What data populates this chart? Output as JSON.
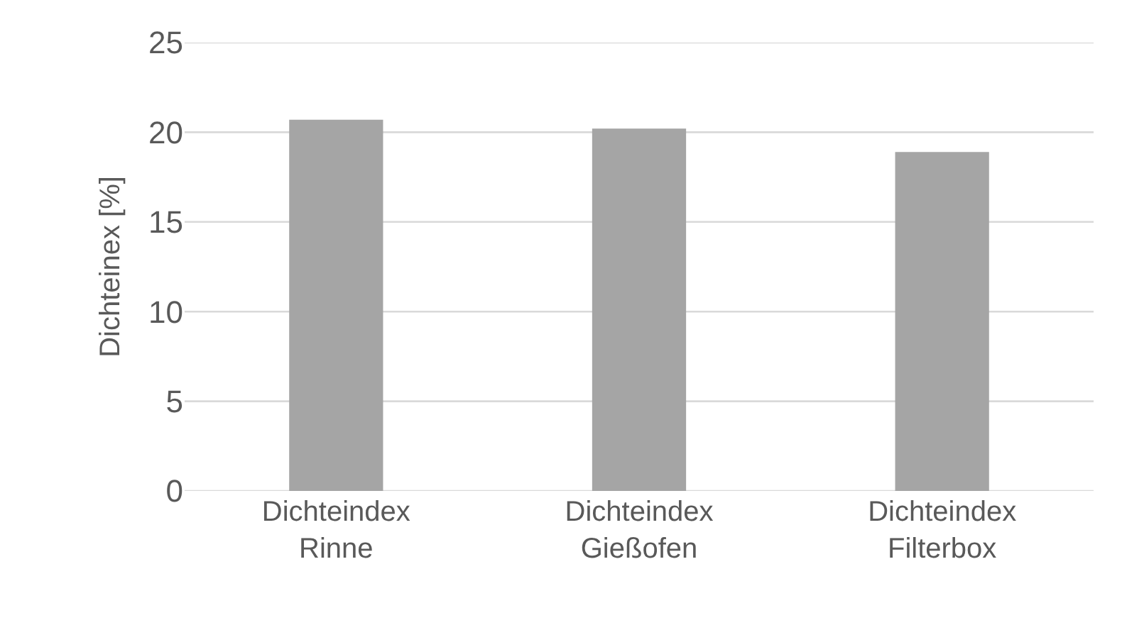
{
  "chart_data": {
    "type": "bar",
    "ylabel": "Dichteinex [%]",
    "categories": [
      "Dichteindex Rinne",
      "Dichteindex Gießofen",
      "Dichteindex Filterbox"
    ],
    "values": [
      20.7,
      20.2,
      18.9
    ],
    "color": "#a5a5a5",
    "ylim": [
      0,
      25
    ],
    "yticks": [
      0,
      5,
      10,
      15,
      20,
      25
    ],
    "grid": "y"
  }
}
